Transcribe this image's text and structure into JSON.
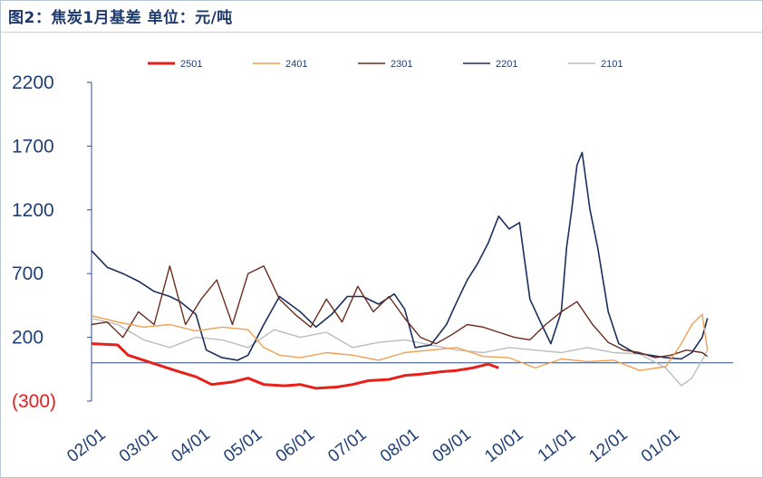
{
  "chart_data": {
    "type": "line",
    "title": "图2：焦炭1月基差 单位：元/吨",
    "xlabel": "",
    "ylabel": "",
    "ylim": [
      -300,
      2200
    ],
    "yticks": [
      {
        "value": 2200,
        "label": "2200"
      },
      {
        "value": 1700,
        "label": "1700"
      },
      {
        "value": 1200,
        "label": "1200"
      },
      {
        "value": 700,
        "label": "700"
      },
      {
        "value": 200,
        "label": "200"
      },
      {
        "value": -300,
        "label": "(300)"
      }
    ],
    "xticks": [
      "02/01",
      "03/01",
      "04/01",
      "05/01",
      "06/01",
      "07/01",
      "08/01",
      "09/01",
      "10/01",
      "11/01",
      "12/01",
      "01/01"
    ],
    "legend_position": "top",
    "series": [
      {
        "name": "2501",
        "color": "#e8201a",
        "width": 3,
        "x": [
          0,
          0.5,
          0.7,
          1,
          1.3,
          1.6,
          2,
          2.3,
          2.7,
          3,
          3.3,
          3.7,
          4,
          4.3,
          4.7,
          5,
          5.3,
          5.7,
          6,
          6.3,
          6.7,
          7,
          7.3,
          7.6,
          7.8
        ],
        "values": [
          150,
          140,
          60,
          20,
          -20,
          -60,
          -110,
          -170,
          -150,
          -120,
          -170,
          -180,
          -170,
          -200,
          -190,
          -170,
          -140,
          -130,
          -100,
          -90,
          -70,
          -60,
          -40,
          -10,
          -40
        ]
      },
      {
        "name": "2401",
        "color": "#f0a050",
        "width": 1.4,
        "x": [
          0,
          0.5,
          1,
          1.5,
          2,
          2.5,
          3,
          3.3,
          3.6,
          4,
          4.5,
          5,
          5.5,
          6,
          6.5,
          7,
          7.5,
          8,
          8.5,
          9,
          9.5,
          10,
          10.5,
          11,
          11.3,
          11.5,
          11.7,
          11.8
        ],
        "values": [
          370,
          320,
          280,
          300,
          250,
          280,
          260,
          120,
          60,
          40,
          80,
          60,
          20,
          80,
          100,
          120,
          50,
          40,
          -40,
          30,
          10,
          20,
          -60,
          -30,
          150,
          300,
          380,
          100
        ]
      },
      {
        "name": "2301",
        "color": "#6b2c1e",
        "width": 1.4,
        "x": [
          0,
          0.3,
          0.6,
          0.9,
          1.2,
          1.5,
          1.8,
          2.1,
          2.4,
          2.7,
          3,
          3.3,
          3.6,
          3.9,
          4.2,
          4.5,
          4.8,
          5.1,
          5.4,
          5.7,
          6,
          6.3,
          6.6,
          6.9,
          7.2,
          7.5,
          7.8,
          8.1,
          8.4,
          8.7,
          9,
          9.3,
          9.6,
          9.9,
          10.2,
          10.5,
          10.8,
          11.1,
          11.4,
          11.7,
          11.8
        ],
        "values": [
          300,
          320,
          200,
          400,
          300,
          760,
          300,
          500,
          650,
          300,
          700,
          760,
          500,
          380,
          280,
          500,
          320,
          600,
          400,
          520,
          350,
          200,
          150,
          220,
          300,
          280,
          240,
          200,
          180,
          300,
          400,
          480,
          300,
          160,
          100,
          80,
          40,
          60,
          100,
          80,
          50
        ]
      },
      {
        "name": "2201",
        "color": "#1a2f5e",
        "width": 1.6,
        "x": [
          0,
          0.3,
          0.6,
          0.9,
          1.2,
          1.5,
          1.7,
          2,
          2.2,
          2.5,
          2.8,
          3,
          3.3,
          3.6,
          4,
          4.3,
          4.6,
          4.9,
          5.2,
          5.5,
          5.8,
          6,
          6.2,
          6.5,
          6.8,
          7,
          7.2,
          7.4,
          7.6,
          7.8,
          8,
          8.2,
          8.4,
          8.6,
          8.8,
          9,
          9.1,
          9.2,
          9.3,
          9.4,
          9.55,
          9.7,
          9.9,
          10.1,
          10.4,
          10.7,
          11,
          11.3,
          11.5,
          11.7,
          11.8
        ],
        "values": [
          880,
          750,
          700,
          640,
          560,
          520,
          480,
          380,
          100,
          40,
          20,
          60,
          300,
          520,
          400,
          280,
          380,
          520,
          520,
          460,
          540,
          420,
          120,
          140,
          300,
          480,
          650,
          780,
          940,
          1150,
          1050,
          1100,
          500,
          320,
          150,
          400,
          900,
          1200,
          1550,
          1650,
          1200,
          900,
          400,
          150,
          80,
          60,
          40,
          30,
          80,
          200,
          350
        ]
      },
      {
        "name": "2101",
        "color": "#bcbcbc",
        "width": 1.4,
        "x": [
          0,
          0.5,
          1,
          1.5,
          2,
          2.5,
          3,
          3.5,
          4,
          4.5,
          5,
          5.5,
          6,
          6.5,
          7,
          7.5,
          8,
          8.5,
          9,
          9.5,
          10,
          10.5,
          11,
          11.3,
          11.5,
          11.7,
          11.8
        ],
        "values": [
          350,
          300,
          180,
          120,
          200,
          180,
          120,
          260,
          200,
          240,
          120,
          160,
          180,
          140,
          100,
          80,
          120,
          100,
          80,
          120,
          80,
          70,
          -40,
          -180,
          -120,
          20,
          100
        ]
      }
    ],
    "baseline": 0
  }
}
